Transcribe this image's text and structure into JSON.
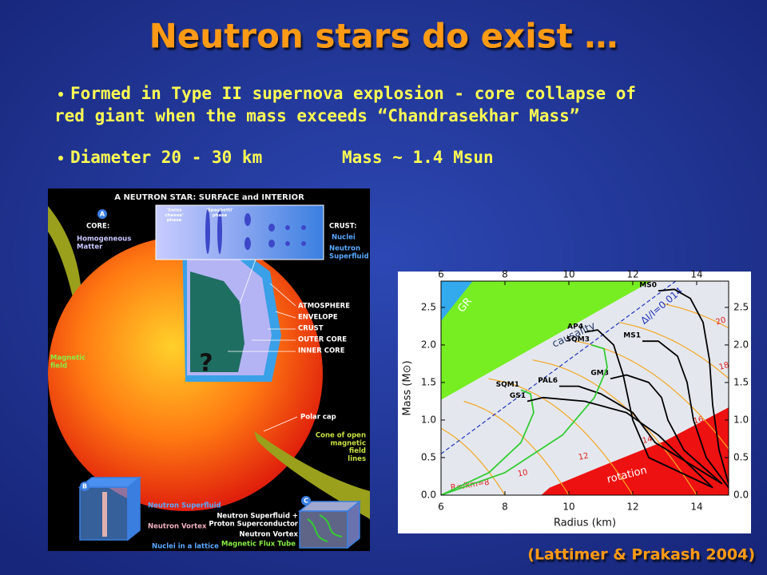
{
  "header": {
    "title": "Neutron stars do exist …"
  },
  "bullets": [
    {
      "lines": [
        "Formed in Type II supernova explosion - core collapse of",
        "red giant when the mass exceeds “Chandrasekhar Mass”"
      ]
    },
    {
      "columns": [
        "Diameter 20 - 30 km",
        "Mass ~ 1.4 Msun"
      ]
    }
  ],
  "figure_left": {
    "title": "A NEUTRON STAR: SURFACE and INTERIOR",
    "labels": [
      {
        "lines": [
          "A"
        ]
      },
      {
        "lines": [
          "CORE:"
        ]
      },
      {
        "lines": [
          "Homogeneous",
          "Matter"
        ]
      },
      {
        "lines": [
          "'Swiss",
          "cheese'",
          "phase"
        ]
      },
      {
        "lines": [
          "'Spaghetti'",
          "phase"
        ]
      },
      {
        "lines": [
          "CRUST:"
        ]
      },
      {
        "lines": [
          "Nuclei"
        ]
      },
      {
        "lines": [
          "Neutron",
          "Superfluid"
        ]
      },
      {
        "lines": [
          "ATMOSPHERE"
        ]
      },
      {
        "lines": [
          "ENVELOPE"
        ]
      },
      {
        "lines": [
          "CRUST"
        ]
      },
      {
        "lines": [
          "OUTER CORE"
        ]
      },
      {
        "lines": [
          "INNER CORE"
        ]
      },
      {
        "lines": [
          "?"
        ]
      },
      {
        "lines": [
          "Magnetic",
          "field"
        ]
      },
      {
        "lines": [
          "Polar cap"
        ]
      },
      {
        "lines": [
          "Cone of open",
          "magnetic",
          "field",
          "lines"
        ]
      },
      {
        "lines": [
          "B"
        ]
      },
      {
        "lines": [
          "Neutron Superfluid"
        ]
      },
      {
        "lines": [
          "Neutron Vortex"
        ]
      },
      {
        "lines": [
          "Nuclei in a lattice"
        ]
      },
      {
        "lines": [
          "C"
        ]
      },
      {
        "lines": [
          "Neutron Superfluid +",
          "Proton Superconductor"
        ]
      },
      {
        "lines": [
          "Neutron Vortex"
        ]
      },
      {
        "lines": [
          "Magnetic Flux Tube"
        ]
      }
    ]
  },
  "figure_right": {
    "x_label": "Radius (km)",
    "y_label": "Mass (M⊙)",
    "xlim": [
      6,
      15
    ],
    "ylim": [
      0,
      2.85
    ],
    "xticks": [
      6,
      8,
      10,
      12,
      14
    ],
    "yticks": [
      {
        "value": 0,
        "label": "0.0"
      },
      {
        "value": 0.5,
        "label": "0.5"
      },
      {
        "value": 1,
        "label": "1.0"
      },
      {
        "value": 1.5,
        "label": "1.5"
      },
      {
        "value": 2,
        "label": "2.0"
      },
      {
        "value": 2.5,
        "label": "2.5"
      }
    ],
    "regions": [
      "GR",
      "causality",
      "rotation"
    ],
    "dashed_label": "ΔI/I=0.014",
    "contours": [
      {
        "value": 8,
        "label": "R∞/km=8"
      },
      {
        "value": 10,
        "label": "10"
      },
      {
        "value": 12,
        "label": "12"
      },
      {
        "value": 14,
        "label": "14"
      },
      {
        "value": 16,
        "label": "16"
      },
      {
        "value": 18,
        "label": "18"
      },
      {
        "value": 20,
        "label": "20"
      }
    ],
    "curves": [
      {
        "name": "MS0",
        "color": "#000000",
        "points": [
          [
            15.0,
            0.15
          ],
          [
            14.7,
            0.6
          ],
          [
            14.5,
            1.2
          ],
          [
            14.4,
            1.8
          ],
          [
            14.2,
            2.3
          ],
          [
            13.8,
            2.62
          ],
          [
            13.3,
            2.74
          ],
          [
            12.8,
            2.72
          ]
        ]
      },
      {
        "name": "MS1",
        "color": "#000000",
        "points": [
          [
            15.0,
            0.1
          ],
          [
            14.3,
            0.5
          ],
          [
            13.9,
            1.0
          ],
          [
            13.7,
            1.5
          ],
          [
            13.4,
            1.85
          ],
          [
            12.8,
            2.05
          ],
          [
            12.3,
            2.05
          ]
        ]
      },
      {
        "name": "GM3",
        "color": "#000000",
        "points": [
          [
            14.8,
            0.15
          ],
          [
            13.6,
            0.6
          ],
          [
            13.1,
            1.0
          ],
          [
            12.9,
            1.3
          ],
          [
            12.5,
            1.5
          ],
          [
            11.8,
            1.6
          ],
          [
            11.3,
            1.55
          ]
        ]
      },
      {
        "name": "AP4",
        "color": "#000000",
        "points": [
          [
            14.5,
            0.1
          ],
          [
            12.5,
            0.5
          ],
          [
            12.0,
            1.0
          ],
          [
            11.7,
            1.6
          ],
          [
            11.4,
            2.0
          ],
          [
            10.9,
            2.2
          ],
          [
            10.5,
            2.17
          ]
        ]
      },
      {
        "name": "PAL6",
        "color": "#000000",
        "points": [
          [
            14.8,
            0.15
          ],
          [
            12.7,
            0.7
          ],
          [
            12.0,
            1.1
          ],
          [
            11.0,
            1.35
          ],
          [
            10.3,
            1.45
          ],
          [
            9.7,
            1.45
          ]
        ]
      },
      {
        "name": "SQM3",
        "color": "#33cc33",
        "points": [
          [
            6.0,
            0.0
          ],
          [
            8.0,
            0.3
          ],
          [
            9.8,
            0.8
          ],
          [
            10.8,
            1.3
          ],
          [
            11.2,
            1.7
          ],
          [
            11.1,
            1.95
          ],
          [
            10.7,
            2.0
          ]
        ]
      },
      {
        "name": "SQM1",
        "color": "#33cc33",
        "points": [
          [
            6.0,
            0.0
          ],
          [
            7.5,
            0.3
          ],
          [
            8.5,
            0.7
          ],
          [
            8.9,
            1.1
          ],
          [
            8.8,
            1.35
          ],
          [
            8.5,
            1.4
          ]
        ]
      },
      {
        "name": "GS1",
        "color": "#000000",
        "points": [
          [
            14.5,
            0.1
          ],
          [
            12.8,
            0.8
          ],
          [
            11.8,
            1.1
          ],
          [
            10.5,
            1.25
          ],
          [
            9.2,
            1.3
          ],
          [
            8.7,
            1.25
          ]
        ]
      }
    ]
  },
  "citation": "(Lattimer & Prakash 2004)"
}
